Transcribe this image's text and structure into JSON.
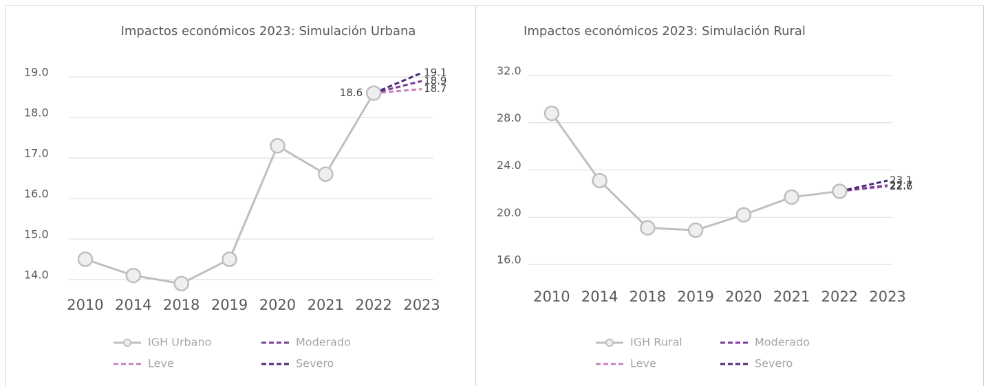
{
  "chart_data": [
    {
      "type": "line",
      "title": "Impactos económicos 2023:  Simulación Urbana",
      "categories": [
        "2010",
        "2014",
        "2018",
        "2019",
        "2020",
        "2021",
        "2022",
        "2023"
      ],
      "series": [
        {
          "name": "IGH Urbano",
          "color": "#bfbfbf",
          "marker": "circle",
          "data_labels": "last",
          "label_position": "left",
          "values": [
            14.5,
            14.1,
            13.9,
            14.5,
            17.3,
            16.6,
            18.6,
            null
          ]
        },
        {
          "name": "Leve",
          "color": "#c77fc0",
          "dash": true,
          "data_labels": "last",
          "label_position": "right",
          "values": [
            null,
            null,
            null,
            null,
            null,
            null,
            18.6,
            18.7
          ]
        },
        {
          "name": "Moderado",
          "color": "#7a3d9c",
          "dash": true,
          "data_labels": "last",
          "label_position": "right",
          "values": [
            null,
            null,
            null,
            null,
            null,
            null,
            18.6,
            18.9
          ]
        },
        {
          "name": "Severo",
          "color": "#4a2878",
          "dash": true,
          "data_labels": "last",
          "label_position": "right",
          "values": [
            null,
            null,
            null,
            null,
            null,
            null,
            18.6,
            19.1
          ]
        }
      ],
      "ylim": [
        13.8,
        19.2
      ],
      "yticks": [
        {
          "value": 14,
          "label": "14.0"
        },
        {
          "value": 15,
          "label": "15.0"
        },
        {
          "value": 16,
          "label": "16.0"
        },
        {
          "value": 17,
          "label": "17.0"
        },
        {
          "value": 18,
          "label": "18.0"
        },
        {
          "value": 19,
          "label": "19.0"
        }
      ],
      "grid": true,
      "legend": "bottom"
    },
    {
      "type": "line",
      "title": "Impactos económicos 2023: Simulación Rural",
      "categories": [
        "2010",
        "2014",
        "2018",
        "2019",
        "2020",
        "2021",
        "2022",
        "2023"
      ],
      "series": [
        {
          "name": "IGH Rural",
          "color": "#bfbfbf",
          "marker": "circle",
          "values": [
            28.8,
            23.1,
            19.1,
            18.9,
            20.2,
            21.7,
            22.2,
            null
          ]
        },
        {
          "name": "Leve",
          "color": "#c77fc0",
          "dash": true,
          "data_labels": "last",
          "label_position": "right",
          "values": [
            null,
            null,
            null,
            null,
            null,
            null,
            22.2,
            22.6
          ]
        },
        {
          "name": "Moderado",
          "color": "#7a3d9c",
          "dash": true,
          "data_labels": "last",
          "label_position": "right",
          "values": [
            null,
            null,
            null,
            null,
            null,
            null,
            22.2,
            22.7
          ]
        },
        {
          "name": "Severo",
          "color": "#4a2878",
          "dash": true,
          "data_labels": "last",
          "label_position": "right",
          "values": [
            null,
            null,
            null,
            null,
            null,
            null,
            22.2,
            23.1
          ]
        }
      ],
      "ylim": [
        15.5,
        32.5
      ],
      "yticks": [
        {
          "value": 16,
          "label": "16.0"
        },
        {
          "value": 20,
          "label": "20.0"
        },
        {
          "value": 24,
          "label": "24.0"
        },
        {
          "value": 28,
          "label": "28.0"
        },
        {
          "value": 32,
          "label": "32.0"
        }
      ],
      "grid": true,
      "legend": "bottom"
    }
  ]
}
